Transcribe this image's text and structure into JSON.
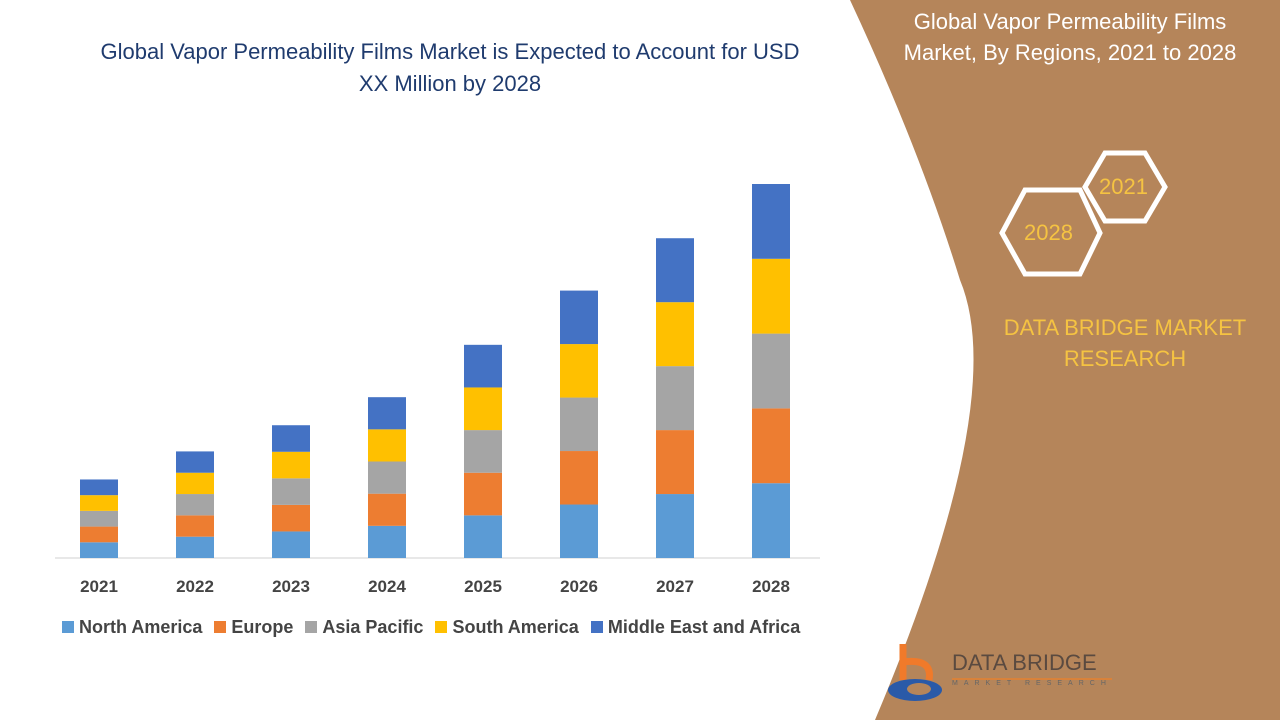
{
  "title": "Global Vapor Permeability Films Market is Expected to Account for USD XX Million by 2028",
  "side_title": "Global Vapor Permeability Films Market, By Regions, 2021 to 2028",
  "hex_labels": [
    "2021",
    "2028"
  ],
  "brand": "DATA BRIDGE MARKET RESEARCH",
  "logo": {
    "name": "DATA BRIDGE",
    "sub": "MARKET RESEARCH"
  },
  "colors": {
    "panel": "#b5855a",
    "accent": "#f5c342",
    "title": "#1f3b6e"
  },
  "chart_data": {
    "type": "bar",
    "stacked": true,
    "title": "Global Vapor Permeability Films Market is Expected to Account for USD XX Million by 2028",
    "categories": [
      "2021",
      "2022",
      "2023",
      "2024",
      "2025",
      "2026",
      "2027",
      "2028"
    ],
    "grid": false,
    "legend": "bottom",
    "ylim": [
      0,
      100
    ],
    "series": [
      {
        "name": "North America",
        "color": "#5b9bd5",
        "values": [
          4.2,
          5.7,
          7.1,
          8.6,
          11.4,
          14.3,
          17.1,
          20
        ]
      },
      {
        "name": "Europe",
        "color": "#ed7d31",
        "values": [
          4.2,
          5.7,
          7.1,
          8.6,
          11.4,
          14.3,
          17.1,
          20
        ]
      },
      {
        "name": "Asia Pacific",
        "color": "#a5a5a5",
        "values": [
          4.2,
          5.7,
          7.1,
          8.6,
          11.4,
          14.3,
          17.1,
          20
        ]
      },
      {
        "name": "South America",
        "color": "#ffc000",
        "values": [
          4.2,
          5.7,
          7.1,
          8.6,
          11.4,
          14.3,
          17.1,
          20
        ]
      },
      {
        "name": "Middle East and Africa",
        "color": "#4472c4",
        "values": [
          4.2,
          5.7,
          7.1,
          8.6,
          11.4,
          14.3,
          17.1,
          20
        ]
      }
    ]
  }
}
